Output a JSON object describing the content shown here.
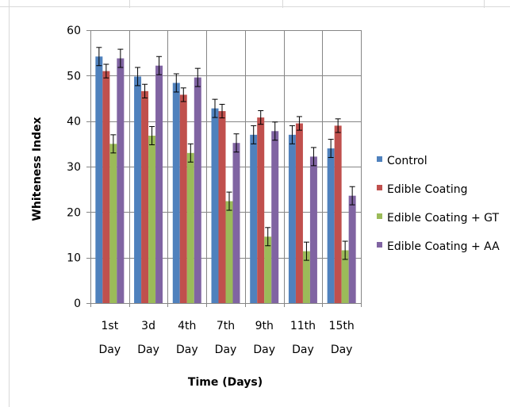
{
  "chart_data": {
    "type": "bar",
    "categories": [
      "1st Day",
      "3d Day",
      "4th Day",
      "7th Day",
      "9th Day",
      "11th Day",
      "15th Day"
    ],
    "category_lines": [
      [
        "1st",
        "Day"
      ],
      [
        "3d",
        "Day"
      ],
      [
        "4th",
        "Day"
      ],
      [
        "7th",
        "Day"
      ],
      [
        "9th",
        "Day"
      ],
      [
        "11th",
        "Day"
      ],
      [
        "15th",
        "Day"
      ]
    ],
    "series": [
      {
        "name": "Control",
        "color": "#4f81bd",
        "values": [
          54.2,
          49.8,
          48.4,
          42.8,
          37.0,
          37.0,
          34.0
        ],
        "errors": [
          2.0,
          2.0,
          2.0,
          2.0,
          2.0,
          2.0,
          2.0
        ]
      },
      {
        "name": "Edible Coating",
        "color": "#c0504d",
        "values": [
          51.0,
          46.6,
          45.8,
          42.2,
          40.8,
          39.5,
          39.0
        ],
        "errors": [
          1.5,
          1.5,
          1.5,
          1.5,
          1.5,
          1.5,
          1.5
        ]
      },
      {
        "name": "Edible Coating + GT",
        "color": "#9bbb59",
        "values": [
          35.0,
          36.8,
          33.0,
          22.4,
          14.6,
          11.4,
          11.6
        ],
        "errors": [
          2.0,
          2.0,
          2.0,
          2.0,
          2.0,
          2.0,
          2.0
        ]
      },
      {
        "name": "Edible Coating + AA",
        "color": "#8064a2",
        "values": [
          53.8,
          52.2,
          49.6,
          35.2,
          37.8,
          32.2,
          23.6
        ],
        "errors": [
          2.0,
          2.0,
          2.0,
          2.0,
          2.0,
          2.0,
          2.0
        ]
      }
    ],
    "ylabel": "Whiteness Index",
    "xlabel": "Time  (Days)",
    "ylim": [
      0,
      60
    ],
    "yticks": [
      0,
      10,
      20,
      30,
      40,
      50,
      60
    ],
    "grid": true,
    "legend_position": "right"
  }
}
